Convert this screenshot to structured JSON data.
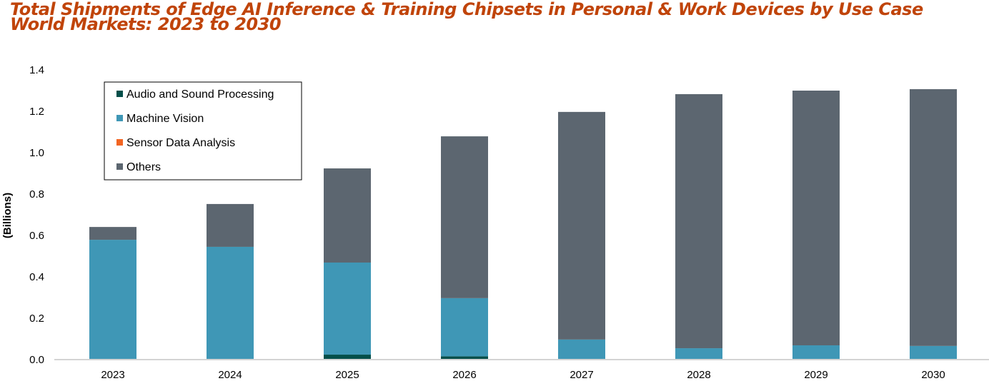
{
  "chart_data": {
    "type": "bar",
    "stacked": true,
    "title": "Total Shipments of Edge AI Inference & Training Chipsets in Personal & Work Devices by Use Case",
    "subtitle": "World Markets: 2023 to 2030",
    "xlabel": "",
    "ylabel": "(Billions)",
    "ylim": [
      0,
      1.4
    ],
    "yticks": [
      "0.0",
      "0.2",
      "0.4",
      "0.6",
      "0.8",
      "1.0",
      "1.2",
      "1.4"
    ],
    "grid": false,
    "legend_position": "top-left",
    "categories": [
      "2023",
      "2024",
      "2025",
      "2026",
      "2027",
      "2028",
      "2029",
      "2030"
    ],
    "series": [
      {
        "name": "Audio and Sound Processing",
        "color": "#044f4a",
        "values": [
          0.0,
          0.003,
          0.024,
          0.016,
          0.003,
          0.001,
          0.002,
          0.001
        ]
      },
      {
        "name": "Machine Vision",
        "color": "#3f97b6",
        "values": [
          0.579,
          0.542,
          0.445,
          0.281,
          0.094,
          0.054,
          0.067,
          0.065
        ]
      },
      {
        "name": "Sensor Data Analysis",
        "color": "#f26522",
        "values": [
          0,
          0,
          0,
          0,
          0,
          0,
          0,
          0
        ]
      },
      {
        "name": "Others",
        "color": "#5c6670",
        "values": [
          0.062,
          0.207,
          0.455,
          0.782,
          1.1,
          1.228,
          1.231,
          1.241
        ]
      }
    ]
  }
}
